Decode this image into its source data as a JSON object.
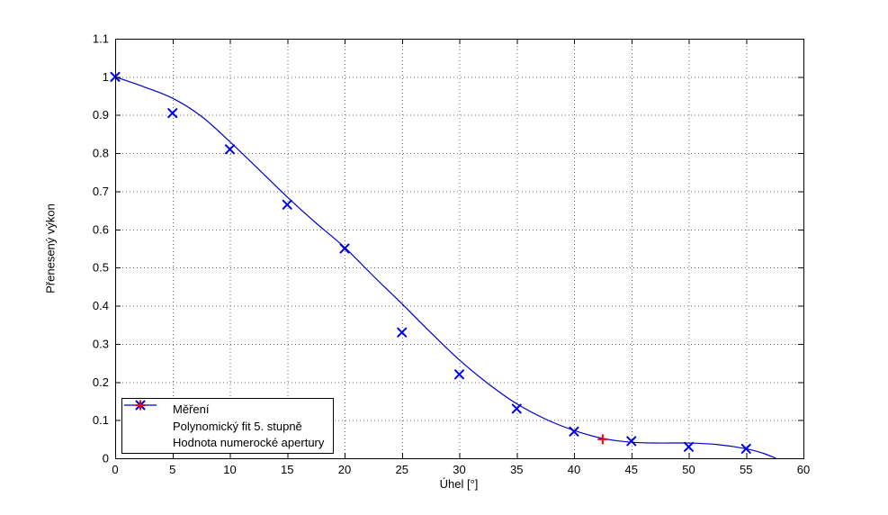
{
  "figure": {
    "background": "#FFFFFF",
    "axis_color": "#000000",
    "grid_color": "#6E6E6E"
  },
  "chart_data": {
    "type": "line+scatter",
    "title": "",
    "xlabel": "Úhel [°]",
    "ylabel": "Přenesený výkon",
    "xlim": [
      0,
      60
    ],
    "ylim": [
      0,
      1.1
    ],
    "grid": "dotted",
    "legend_position": "bottom-left-inside",
    "xticks": {
      "values": [
        0,
        5,
        10,
        15,
        20,
        25,
        30,
        35,
        40,
        45,
        50,
        55,
        60
      ],
      "labels": [
        "0",
        "5",
        "10",
        "15",
        "20",
        "25",
        "30",
        "35",
        "40",
        "45",
        "50",
        "55",
        "60"
      ]
    },
    "yticks": {
      "values": [
        0,
        0.1,
        0.2,
        0.3,
        0.4,
        0.5,
        0.6,
        0.7,
        0.8,
        0.9,
        1.0,
        1.1
      ],
      "labels": [
        "0",
        "0.1",
        "0.2",
        "0.3",
        "0.4",
        "0.5",
        "0.6",
        "0.7",
        "0.8",
        "0.9",
        "1",
        "1.1"
      ]
    },
    "series": [
      {
        "name": "Měření",
        "type": "scatter",
        "marker": "x",
        "color": "#0000EE",
        "x": [
          0,
          5,
          10,
          15,
          20,
          25,
          30,
          35,
          40,
          45,
          50,
          55
        ],
        "y": [
          1.0,
          0.905,
          0.81,
          0.665,
          0.55,
          0.33,
          0.22,
          0.13,
          0.07,
          0.045,
          0.03,
          0.025
        ]
      },
      {
        "name": "Polynomický fit 5. stupně",
        "type": "line",
        "color": "#0000C8",
        "x": [
          0,
          2.5,
          5,
          7.5,
          10,
          12.5,
          15,
          17.5,
          20,
          22.5,
          25,
          27.5,
          30,
          32.5,
          35,
          37.5,
          40,
          42.5,
          45,
          47.5,
          50,
          52.5,
          55,
          56.5,
          57.6
        ],
        "y": [
          1.0,
          0.974,
          0.944,
          0.897,
          0.83,
          0.758,
          0.685,
          0.617,
          0.553,
          0.478,
          0.405,
          0.33,
          0.258,
          0.196,
          0.143,
          0.103,
          0.073,
          0.052,
          0.042,
          0.04,
          0.04,
          0.036,
          0.025,
          0.013,
          0.0
        ]
      },
      {
        "name": "Hodnota numerocké apertury",
        "type": "scatter",
        "marker": "+",
        "color": "#FF0000",
        "x": [
          42.5
        ],
        "y": [
          0.05
        ]
      }
    ]
  }
}
